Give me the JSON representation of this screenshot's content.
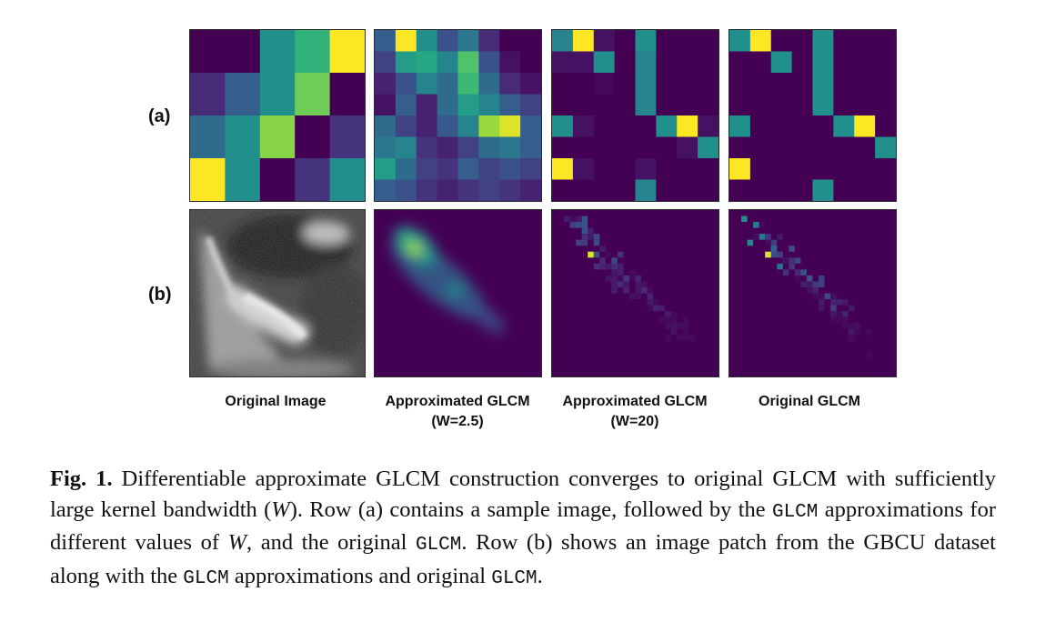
{
  "figure": {
    "row_labels": [
      "(a)",
      "(b)"
    ],
    "column_labels": [
      {
        "line1": "Original Image",
        "line2": ""
      },
      {
        "line1": "Approximated GLCM",
        "line2": "(W=2.5)"
      },
      {
        "line1": "Approximated GLCM",
        "line2": "(W=20)"
      },
      {
        "line1": "Original GLCM",
        "line2": ""
      }
    ],
    "colormap": "viridis",
    "row_a": {
      "original_image": [
        [
          0.0,
          0.0,
          0.5,
          0.65,
          1.0
        ],
        [
          0.12,
          0.3,
          0.5,
          0.78,
          0.0
        ],
        [
          0.35,
          0.5,
          0.82,
          0.0,
          0.15
        ],
        [
          1.0,
          0.5,
          0.0,
          0.15,
          0.5
        ]
      ],
      "approx_w25": [
        [
          0.3,
          1.0,
          0.5,
          0.25,
          0.4,
          0.12,
          0.0,
          0.0
        ],
        [
          0.2,
          0.55,
          0.6,
          0.45,
          0.72,
          0.25,
          0.05,
          0.0
        ],
        [
          0.1,
          0.25,
          0.45,
          0.35,
          0.68,
          0.35,
          0.12,
          0.05
        ],
        [
          0.05,
          0.3,
          0.1,
          0.35,
          0.55,
          0.45,
          0.3,
          0.2
        ],
        [
          0.35,
          0.2,
          0.1,
          0.28,
          0.45,
          0.85,
          0.95,
          0.3
        ],
        [
          0.4,
          0.45,
          0.15,
          0.1,
          0.2,
          0.35,
          0.4,
          0.3
        ],
        [
          0.55,
          0.35,
          0.2,
          0.15,
          0.3,
          0.2,
          0.25,
          0.2
        ],
        [
          0.3,
          0.25,
          0.15,
          0.1,
          0.15,
          0.2,
          0.15,
          0.1
        ]
      ],
      "approx_w20": [
        [
          0.45,
          1.0,
          0.05,
          0.0,
          0.5,
          0.0,
          0.0,
          0.0
        ],
        [
          0.05,
          0.05,
          0.5,
          0.0,
          0.45,
          0.0,
          0.0,
          0.0
        ],
        [
          0.0,
          0.0,
          0.02,
          0.0,
          0.45,
          0.0,
          0.0,
          0.0
        ],
        [
          0.0,
          0.0,
          0.0,
          0.0,
          0.45,
          0.0,
          0.0,
          0.0
        ],
        [
          0.5,
          0.05,
          0.0,
          0.0,
          0.0,
          0.5,
          1.0,
          0.05
        ],
        [
          0.0,
          0.0,
          0.0,
          0.0,
          0.0,
          0.0,
          0.05,
          0.5
        ],
        [
          1.0,
          0.05,
          0.0,
          0.0,
          0.05,
          0.0,
          0.0,
          0.0
        ],
        [
          0.0,
          0.0,
          0.0,
          0.0,
          0.45,
          0.0,
          0.0,
          0.0
        ]
      ],
      "original": [
        [
          0.5,
          1.0,
          0.0,
          0.0,
          0.5,
          0.0,
          0.0,
          0.0
        ],
        [
          0.0,
          0.0,
          0.5,
          0.0,
          0.5,
          0.0,
          0.0,
          0.0
        ],
        [
          0.0,
          0.0,
          0.0,
          0.0,
          0.5,
          0.0,
          0.0,
          0.0
        ],
        [
          0.0,
          0.0,
          0.0,
          0.0,
          0.5,
          0.0,
          0.0,
          0.0
        ],
        [
          0.5,
          0.0,
          0.0,
          0.0,
          0.0,
          0.5,
          1.0,
          0.0
        ],
        [
          0.0,
          0.0,
          0.0,
          0.0,
          0.0,
          0.0,
          0.0,
          0.5
        ],
        [
          1.0,
          0.0,
          0.0,
          0.0,
          0.0,
          0.0,
          0.0,
          0.0
        ],
        [
          0.0,
          0.0,
          0.0,
          0.0,
          0.5,
          0.0,
          0.0,
          0.0
        ]
      ]
    }
  },
  "caption": {
    "fig_label": "Fig. 1.",
    "s1": " Differentiable approximate GLCM construction converges to original GLCM with sufficiently large kernel bandwidth (",
    "s1_var": "W",
    "s2": "). Row (a) contains a sample image, followed by the ",
    "s2_code": "GLCM",
    "s3": " approximations for different values of ",
    "s3_var": "W",
    "s4": ", and the original ",
    "s4_code": "GLCM",
    "s5": ". Row (b) shows an image patch from the GBCU dataset along with the ",
    "s5_code": "GLCM",
    "s6": " approximations and original ",
    "s6_code": "GLCM",
    "s7": "."
  }
}
